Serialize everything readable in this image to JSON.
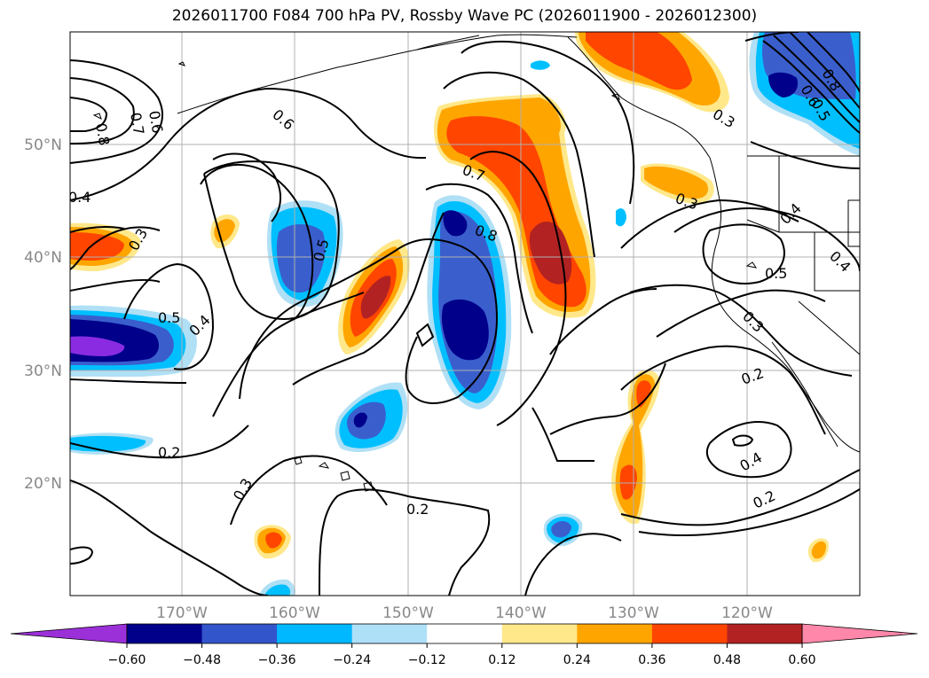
{
  "title": "2026011700 F084 700 hPa PV, Rossby Wave PC (2026011900 - 2026012300)",
  "lat_labels": [
    "50°N",
    "40°N",
    "30°N",
    "20°N"
  ],
  "lon_labels": [
    "170°W",
    "160°W",
    "150°W",
    "140°W",
    "130°W",
    "120°W"
  ],
  "colorbar": {
    "ticks": [
      "−0.60",
      "−0.48",
      "−0.36",
      "−0.24",
      "−0.12",
      "0.12",
      "0.24",
      "0.36",
      "0.48",
      "0.60"
    ],
    "colors": [
      "#9b30d9",
      "#00008b",
      "#3355cc",
      "#00b8ff",
      "#aee0f8",
      "#ffffff",
      "#ffe88a",
      "#ffa500",
      "#ff4500",
      "#b22222",
      "#ff88aa"
    ]
  },
  "contour_labels": [
    "0.8",
    "0.7",
    "0.6",
    "0.6",
    "0.4",
    "0.3",
    "0.5",
    "0.4",
    "0.5",
    "0.7",
    "0.8",
    "0.2",
    "0.3",
    "0.2",
    "0.3",
    "0.3",
    "0.4",
    "0.5",
    "0.4",
    "0.3",
    "0.2",
    "0.4",
    "0.2",
    "0.8",
    "0.6",
    "0.5"
  ],
  "fills": {
    "deep_purple": "#8a2be2",
    "navy": "#00008b",
    "blue": "#3a5fcd",
    "cyan": "#00bfff",
    "light_blue": "#b0e0f5",
    "yellow": "#ffe88a",
    "orange": "#ffa500",
    "red_orange": "#ff4500",
    "dark_red": "#b22222"
  }
}
